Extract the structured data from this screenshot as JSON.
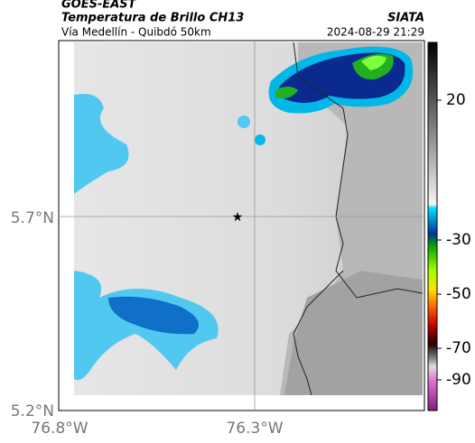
{
  "header": {
    "satellite": "GOES-EAST",
    "product": "Temperatura de Brillo CH13",
    "route": "Vía Medellín - Quibdó 50km",
    "source": "SIATA",
    "datetime": "2024-08-29 21:29"
  },
  "axes": {
    "y_labels": [
      "5.7°N",
      "5.2°N"
    ],
    "x_labels": [
      "76.8°W",
      "76.3°W"
    ]
  },
  "colorbar": {
    "ticks": [
      20,
      -30,
      -50,
      -70,
      -90
    ]
  }
}
